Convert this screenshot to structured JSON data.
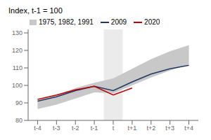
{
  "chart_data": {
    "type": "line",
    "title": "Index, t-1 = 100",
    "x": [
      -4,
      -3,
      -2,
      -1,
      0,
      1,
      2,
      3,
      4
    ],
    "xlim": [
      -4.5,
      4.5
    ],
    "xticks": [
      {
        "value": -4,
        "label": "t-4"
      },
      {
        "value": -3,
        "label": "t-3"
      },
      {
        "value": -2,
        "label": "t-2"
      },
      {
        "value": -1,
        "label": "t-1"
      },
      {
        "value": 0,
        "label": "t"
      },
      {
        "value": 1,
        "label": "t+1"
      },
      {
        "value": 2,
        "label": "t+2"
      },
      {
        "value": 3,
        "label": "t+3"
      },
      {
        "value": 4,
        "label": "t+4"
      }
    ],
    "ylim": [
      80,
      132
    ],
    "yticks": [
      80,
      90,
      100,
      110,
      120,
      130
    ],
    "grid": false,
    "legend": "upper left",
    "shaded_region": {
      "x": [
        -0.5,
        0.5
      ],
      "color": "#d8d8d8"
    },
    "series": [
      {
        "name": "1975, 1982, 1991",
        "type": "band",
        "color": "#c8c8c8",
        "lower": [
          86.5,
          89.0,
          92.5,
          96.0,
          95.5,
          100.0,
          104.5,
          108.5,
          112.0
        ],
        "upper": [
          91.5,
          94.5,
          98.5,
          101.5,
          104.0,
          109.5,
          115.0,
          119.5,
          123.0
        ]
      },
      {
        "name": "2009",
        "type": "line",
        "color": "#1f3864",
        "values": [
          91.0,
          93.5,
          97.0,
          99.5,
          97.0,
          102.0,
          106.5,
          109.5,
          111.5
        ]
      },
      {
        "name": "2020",
        "type": "line",
        "color": "#c00000",
        "values": [
          92.0,
          94.5,
          97.5,
          99.5,
          94.5,
          98.5,
          null,
          null,
          null
        ]
      }
    ]
  }
}
